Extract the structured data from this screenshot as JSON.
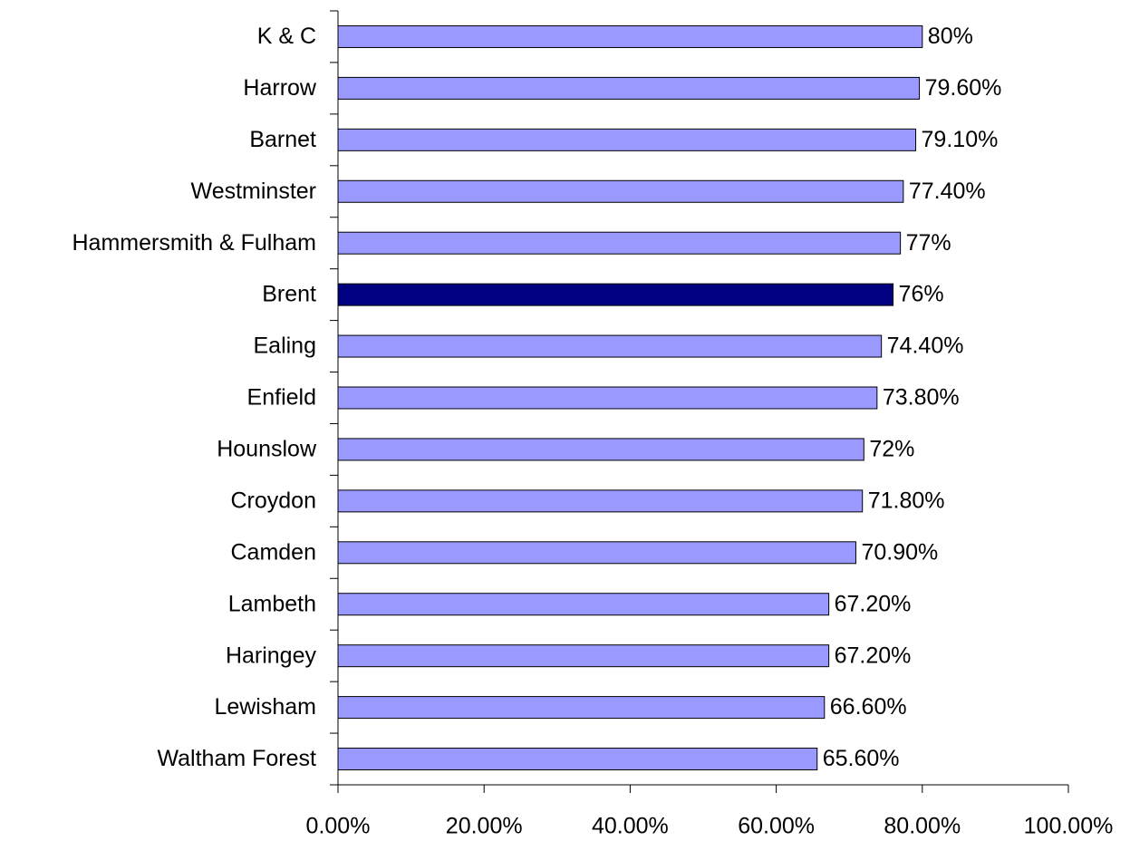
{
  "chart_data": {
    "type": "bar",
    "orientation": "horizontal",
    "categories": [
      "K & C",
      "Harrow",
      "Barnet",
      "Westminster",
      "Hammersmith & Fulham",
      "Brent",
      "Ealing",
      "Enfield",
      "Hounslow",
      "Croydon",
      "Camden",
      "Lambeth",
      "Haringey",
      "Lewisham",
      "Waltham Forest"
    ],
    "values": [
      80,
      79.6,
      79.1,
      77.4,
      77,
      76,
      74.4,
      73.8,
      72,
      71.8,
      70.9,
      67.2,
      67.2,
      66.6,
      65.6
    ],
    "value_labels": [
      "80%",
      "79.60%",
      "79.10%",
      "77.40%",
      "77%",
      "76%",
      "74.40%",
      "73.80%",
      "72%",
      "71.80%",
      "70.90%",
      "67.20%",
      "67.20%",
      "66.60%",
      "65.60%"
    ],
    "colors": [
      "#9999ff",
      "#9999ff",
      "#9999ff",
      "#9999ff",
      "#9999ff",
      "#000080",
      "#9999ff",
      "#9999ff",
      "#9999ff",
      "#9999ff",
      "#9999ff",
      "#9999ff",
      "#9999ff",
      "#9999ff",
      "#9999ff"
    ],
    "xlim": [
      0,
      100
    ],
    "xticks": [
      {
        "value": 0,
        "label": "0.00%"
      },
      {
        "value": 20,
        "label": "20.00%"
      },
      {
        "value": 40,
        "label": "40.00%"
      },
      {
        "value": 60,
        "label": "60.00%"
      },
      {
        "value": 80,
        "label": "80.00%"
      },
      {
        "value": 100,
        "label": "100.00%"
      }
    ],
    "grid": false
  }
}
